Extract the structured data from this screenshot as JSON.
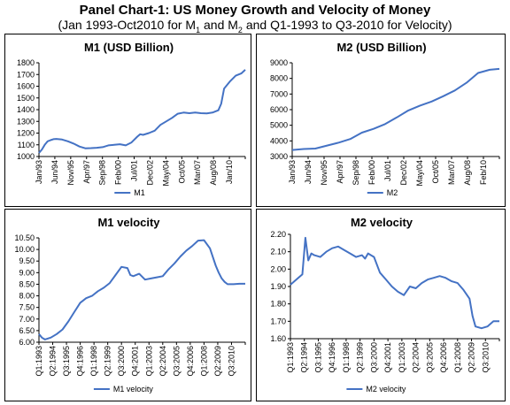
{
  "header": {
    "title": "Panel Chart-1: US Money Growth and Velocity of Money",
    "subtitle_part1": "(Jan 1993-Oct2010 for  M",
    "subtitle_sub1": "1",
    "subtitle_part2": " and M",
    "subtitle_sub2": "2",
    "subtitle_part3": " and Q1-1993 to Q3-2010 for Velocity)"
  },
  "colors": {
    "series": "#4472C4",
    "axis": "#000000"
  },
  "chart_data": [
    {
      "id": "m1",
      "type": "line",
      "title": "M1 (USD Billion)",
      "legend": "M1",
      "legend_position": "bottom",
      "grid": false,
      "xlabel": "",
      "ylabel": "",
      "x_range": [
        1993.0,
        2010.83
      ],
      "ylim": [
        1000,
        1800
      ],
      "yticks": [
        1000,
        1100,
        1200,
        1300,
        1400,
        1500,
        1600,
        1700,
        1800
      ],
      "xtick_labels": [
        "Jan/93",
        "Jun/94",
        "Nov/95",
        "Apr/97",
        "Sep/98",
        "Feb/00",
        "Jul/01",
        "Dec/02",
        "May/04",
        "Oct/05",
        "Mar/07",
        "Aug/08",
        "Jan/10"
      ],
      "x": [
        1993.0,
        1993.25,
        1993.5,
        1993.75,
        1994.0,
        1994.25,
        1994.5,
        1995.0,
        1995.5,
        1996.0,
        1996.5,
        1997.0,
        1997.5,
        1998.0,
        1998.5,
        1999.0,
        1999.5,
        2000.0,
        2000.5,
        2001.0,
        2001.5,
        2001.75,
        2002.0,
        2002.5,
        2003.0,
        2003.5,
        2004.0,
        2004.5,
        2005.0,
        2005.5,
        2006.0,
        2006.5,
        2007.0,
        2007.5,
        2008.0,
        2008.5,
        2008.75,
        2009.0,
        2009.5,
        2010.0,
        2010.5,
        2010.83
      ],
      "values": [
        1030,
        1060,
        1100,
        1130,
        1140,
        1148,
        1150,
        1145,
        1130,
        1110,
        1085,
        1070,
        1072,
        1075,
        1080,
        1095,
        1100,
        1105,
        1095,
        1120,
        1170,
        1190,
        1185,
        1200,
        1220,
        1270,
        1300,
        1330,
        1365,
        1375,
        1370,
        1375,
        1370,
        1368,
        1375,
        1395,
        1450,
        1580,
        1640,
        1690,
        1710,
        1740
      ]
    },
    {
      "id": "m2",
      "type": "line",
      "title": "M2 (USD Billion)",
      "legend": "M2",
      "legend_position": "bottom",
      "grid": false,
      "xlabel": "",
      "ylabel": "",
      "x_range": [
        1993.0,
        2010.83
      ],
      "ylim": [
        3000,
        9000
      ],
      "yticks": [
        3000,
        4000,
        5000,
        6000,
        7000,
        8000,
        9000
      ],
      "xtick_labels": [
        "Jan/93",
        "Jun/94",
        "Nov/95",
        "Apr/97",
        "Sep/98",
        "Feb/00",
        "Jul/01",
        "Dec/02",
        "May/04",
        "Oct/05",
        "Mar/07",
        "Aug/08",
        "Feb/10"
      ],
      "x": [
        1993.0,
        1994.0,
        1995.0,
        1996.0,
        1997.0,
        1998.0,
        1999.0,
        2000.0,
        2001.0,
        2002.0,
        2003.0,
        2004.0,
        2005.0,
        2006.0,
        2007.0,
        2008.0,
        2009.0,
        2010.0,
        2010.83
      ],
      "values": [
        3420,
        3480,
        3510,
        3700,
        3890,
        4120,
        4530,
        4770,
        5080,
        5500,
        5950,
        6260,
        6520,
        6860,
        7230,
        7720,
        8350,
        8550,
        8610
      ]
    },
    {
      "id": "m1v",
      "type": "line",
      "title": "M1 velocity",
      "legend": "M1 velocity",
      "legend_position": "bottom",
      "grid": false,
      "xlabel": "",
      "ylabel": "",
      "x_range": [
        1993.0,
        2010.5
      ],
      "ylim": [
        6.0,
        10.5
      ],
      "yticks": [
        6.0,
        6.5,
        7.0,
        7.5,
        8.0,
        8.5,
        9.0,
        9.5,
        10.0,
        10.5
      ],
      "ytick_labels": [
        "6.00",
        "6.50",
        "7.00",
        "7.50",
        "8.00",
        "8.50",
        "9.00",
        "9.50",
        "10.00",
        "10.50"
      ],
      "xtick_labels": [
        "Q1:1993",
        "Q2:1994",
        "Q3:1995",
        "Q4:1996",
        "Q1:1998",
        "Q2:1999",
        "Q3:2000",
        "Q4:2001",
        "Q1:2003",
        "Q2:2004",
        "Q3:2005",
        "Q4:2006",
        "Q1:2008",
        "Q2:2009",
        "Q3:2010"
      ],
      "x": [
        1993.0,
        1993.25,
        1993.5,
        1994.0,
        1994.5,
        1995.0,
        1995.5,
        1996.0,
        1996.5,
        1997.0,
        1997.5,
        1998.0,
        1998.5,
        1999.0,
        1999.5,
        2000.0,
        2000.5,
        2000.75,
        2001.0,
        2001.5,
        2002.0,
        2002.5,
        2003.0,
        2003.5,
        2004.0,
        2004.5,
        2005.0,
        2005.5,
        2006.0,
        2006.5,
        2007.0,
        2007.5,
        2008.0,
        2008.25,
        2008.5,
        2008.75,
        2009.0,
        2009.5,
        2010.0,
        2010.5
      ],
      "values": [
        6.35,
        6.2,
        6.12,
        6.2,
        6.35,
        6.55,
        6.9,
        7.3,
        7.7,
        7.9,
        8.0,
        8.2,
        8.35,
        8.55,
        8.9,
        9.25,
        9.2,
        8.9,
        8.85,
        8.95,
        8.7,
        8.75,
        8.8,
        8.85,
        9.15,
        9.4,
        9.7,
        9.95,
        10.15,
        10.38,
        10.4,
        10.05,
        9.3,
        9.0,
        8.75,
        8.6,
        8.5,
        8.5,
        8.52,
        8.52
      ]
    },
    {
      "id": "m2v",
      "type": "line",
      "title": "M2 velocity",
      "legend": "M2 velocity",
      "legend_position": "bottom",
      "grid": false,
      "xlabel": "",
      "ylabel": "",
      "x_range": [
        1993.0,
        2010.5
      ],
      "ylim": [
        1.6,
        2.2
      ],
      "yticks": [
        1.6,
        1.7,
        1.8,
        1.9,
        2.0,
        2.1,
        2.2
      ],
      "ytick_labels": [
        "1.60",
        "1.70",
        "1.80",
        "1.90",
        "2.00",
        "2.10",
        "2.20"
      ],
      "xtick_labels": [
        "Q1:1993",
        "Q2:1994",
        "Q3:1995",
        "Q4:1996",
        "Q1:1998",
        "Q2:1999",
        "Q3:2000",
        "Q4:2001",
        "Q1:2003",
        "Q2:2004",
        "Q3:2005",
        "Q4:2006",
        "Q1:2008",
        "Q2:2009",
        "Q3:2010"
      ],
      "x": [
        1993.0,
        1993.5,
        1994.0,
        1994.25,
        1994.5,
        1994.75,
        1995.0,
        1995.5,
        1996.0,
        1996.5,
        1997.0,
        1997.5,
        1998.0,
        1998.5,
        1999.0,
        1999.25,
        1999.5,
        1999.75,
        2000.0,
        2000.5,
        2001.0,
        2001.5,
        2002.0,
        2002.5,
        2003.0,
        2003.5,
        2004.0,
        2004.5,
        2005.0,
        2005.5,
        2006.0,
        2006.5,
        2007.0,
        2007.5,
        2008.0,
        2008.25,
        2008.5,
        2009.0,
        2009.5,
        2010.0,
        2010.5
      ],
      "values": [
        1.91,
        1.94,
        1.97,
        2.18,
        2.05,
        2.09,
        2.08,
        2.07,
        2.1,
        2.12,
        2.13,
        2.11,
        2.09,
        2.07,
        2.08,
        2.06,
        2.09,
        2.08,
        2.07,
        1.98,
        1.94,
        1.9,
        1.87,
        1.85,
        1.9,
        1.89,
        1.92,
        1.94,
        1.95,
        1.96,
        1.95,
        1.93,
        1.92,
        1.88,
        1.83,
        1.73,
        1.67,
        1.66,
        1.67,
        1.7,
        1.7
      ]
    }
  ]
}
